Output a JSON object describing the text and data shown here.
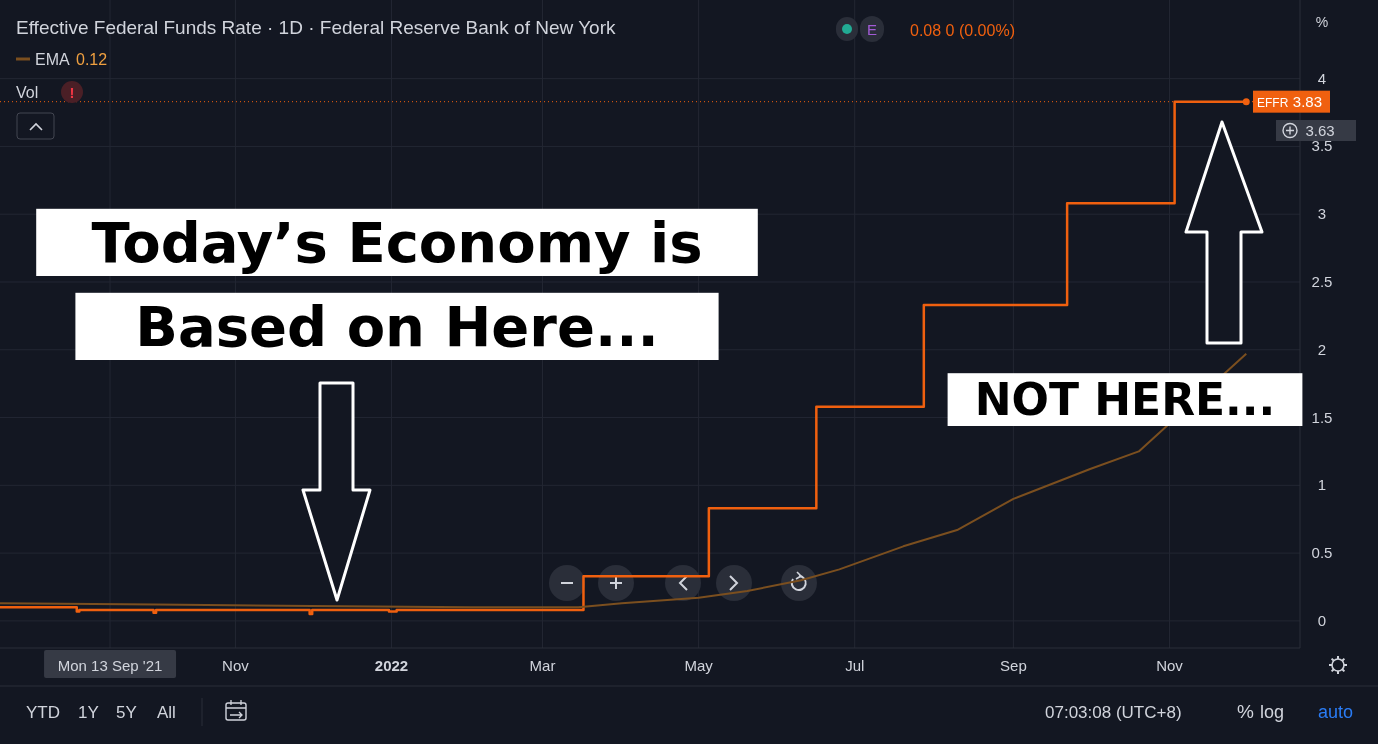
{
  "chart_data": {
    "type": "line",
    "title": "Effective Federal Funds Rate · 1D · Federal Reserve Bank of New York",
    "ylabel": "%",
    "xlim": [
      "2021-08-01",
      "2022-12-22"
    ],
    "xticks": [
      {
        "value": "2021-09-13",
        "label": "Mon 13 Sep '21"
      },
      {
        "value": "2021-11-01",
        "label": "Nov"
      },
      {
        "value": "2022-01-01",
        "label": "2022"
      },
      {
        "value": "2022-03-01",
        "label": "Mar"
      },
      {
        "value": "2022-05-01",
        "label": "May"
      },
      {
        "value": "2022-07-01",
        "label": "Jul"
      },
      {
        "value": "2022-09-01",
        "label": "Sep"
      },
      {
        "value": "2022-11-01",
        "label": "Nov"
      }
    ],
    "ylim": [
      -0.2,
      4.58
    ],
    "yticks": [
      0,
      0.5,
      1,
      1.5,
      2,
      2.5,
      3,
      3.5,
      4
    ],
    "grid": true,
    "series": [
      {
        "name": "EFFR",
        "type": "step",
        "color": "#f0600f",
        "x": [
          "2021-08-01",
          "2021-08-31",
          "2021-09-01",
          "2021-09-30",
          "2021-10-01",
          "2021-11-30",
          "2021-12-01",
          "2021-12-31",
          "2022-01-03",
          "2022-03-17",
          "2022-05-05",
          "2022-06-16",
          "2022-07-28",
          "2022-09-22",
          "2022-11-03",
          "2022-12-01"
        ],
        "values": [
          0.1,
          0.07,
          0.08,
          0.06,
          0.08,
          0.05,
          0.08,
          0.07,
          0.08,
          0.33,
          0.83,
          1.58,
          2.33,
          3.08,
          3.83,
          3.83
        ]
      },
      {
        "name": "EMA",
        "color": "#7b4f1f",
        "x": [
          "2021-08-01",
          "2021-10-01",
          "2021-12-01",
          "2022-02-01",
          "2022-03-15",
          "2022-04-01",
          "2022-05-01",
          "2022-05-20",
          "2022-06-10",
          "2022-06-25",
          "2022-07-20",
          "2022-08-10",
          "2022-09-01",
          "2022-10-01",
          "2022-10-20",
          "2022-12-01"
        ],
        "values": [
          0.13,
          0.12,
          0.11,
          0.1,
          0.1,
          0.13,
          0.17,
          0.22,
          0.3,
          0.38,
          0.55,
          0.67,
          0.9,
          1.12,
          1.25,
          1.97
        ]
      }
    ],
    "ref_lines": [
      {
        "axis": "y",
        "value": 3.83,
        "label": "3.83",
        "color": "#f0600f",
        "line_style": "dotted"
      }
    ],
    "annotations": [
      "0.08 0 (0.00%)",
      "E",
      "0.12",
      "Vol",
      "3.63",
      "YTD",
      "1Y",
      "5Y",
      "All",
      "07:03:08 (UTC+8)",
      "%",
      "log",
      "auto",
      "Today’s Economy is Based on Here...",
      "NOT HERE...",
      "!"
    ]
  }
}
